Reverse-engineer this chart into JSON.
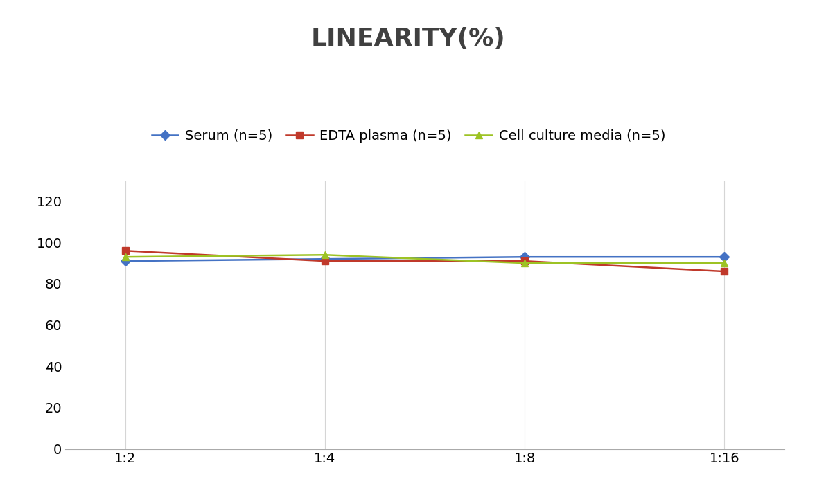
{
  "title": "LINEARITY(%)",
  "x_labels": [
    "1:2",
    "1:4",
    "1:8",
    "1:16"
  ],
  "series": [
    {
      "name": "Serum (n=5)",
      "values": [
        91,
        92,
        93,
        93
      ],
      "color": "#4472C4",
      "marker": "D",
      "markersize": 7
    },
    {
      "name": "EDTA plasma (n=5)",
      "values": [
        96,
        91,
        91,
        86
      ],
      "color": "#C0392B",
      "marker": "s",
      "markersize": 7
    },
    {
      "name": "Cell culture media (n=5)",
      "values": [
        93,
        94,
        90,
        90
      ],
      "color": "#9DC324",
      "marker": "^",
      "markersize": 7
    }
  ],
  "ylim": [
    0,
    130
  ],
  "yticks": [
    0,
    20,
    40,
    60,
    80,
    100,
    120
  ],
  "background_color": "#FFFFFF",
  "grid_color": "#D5D5D5",
  "title_fontsize": 26,
  "legend_fontsize": 14,
  "tick_fontsize": 14,
  "title_color": "#404040"
}
